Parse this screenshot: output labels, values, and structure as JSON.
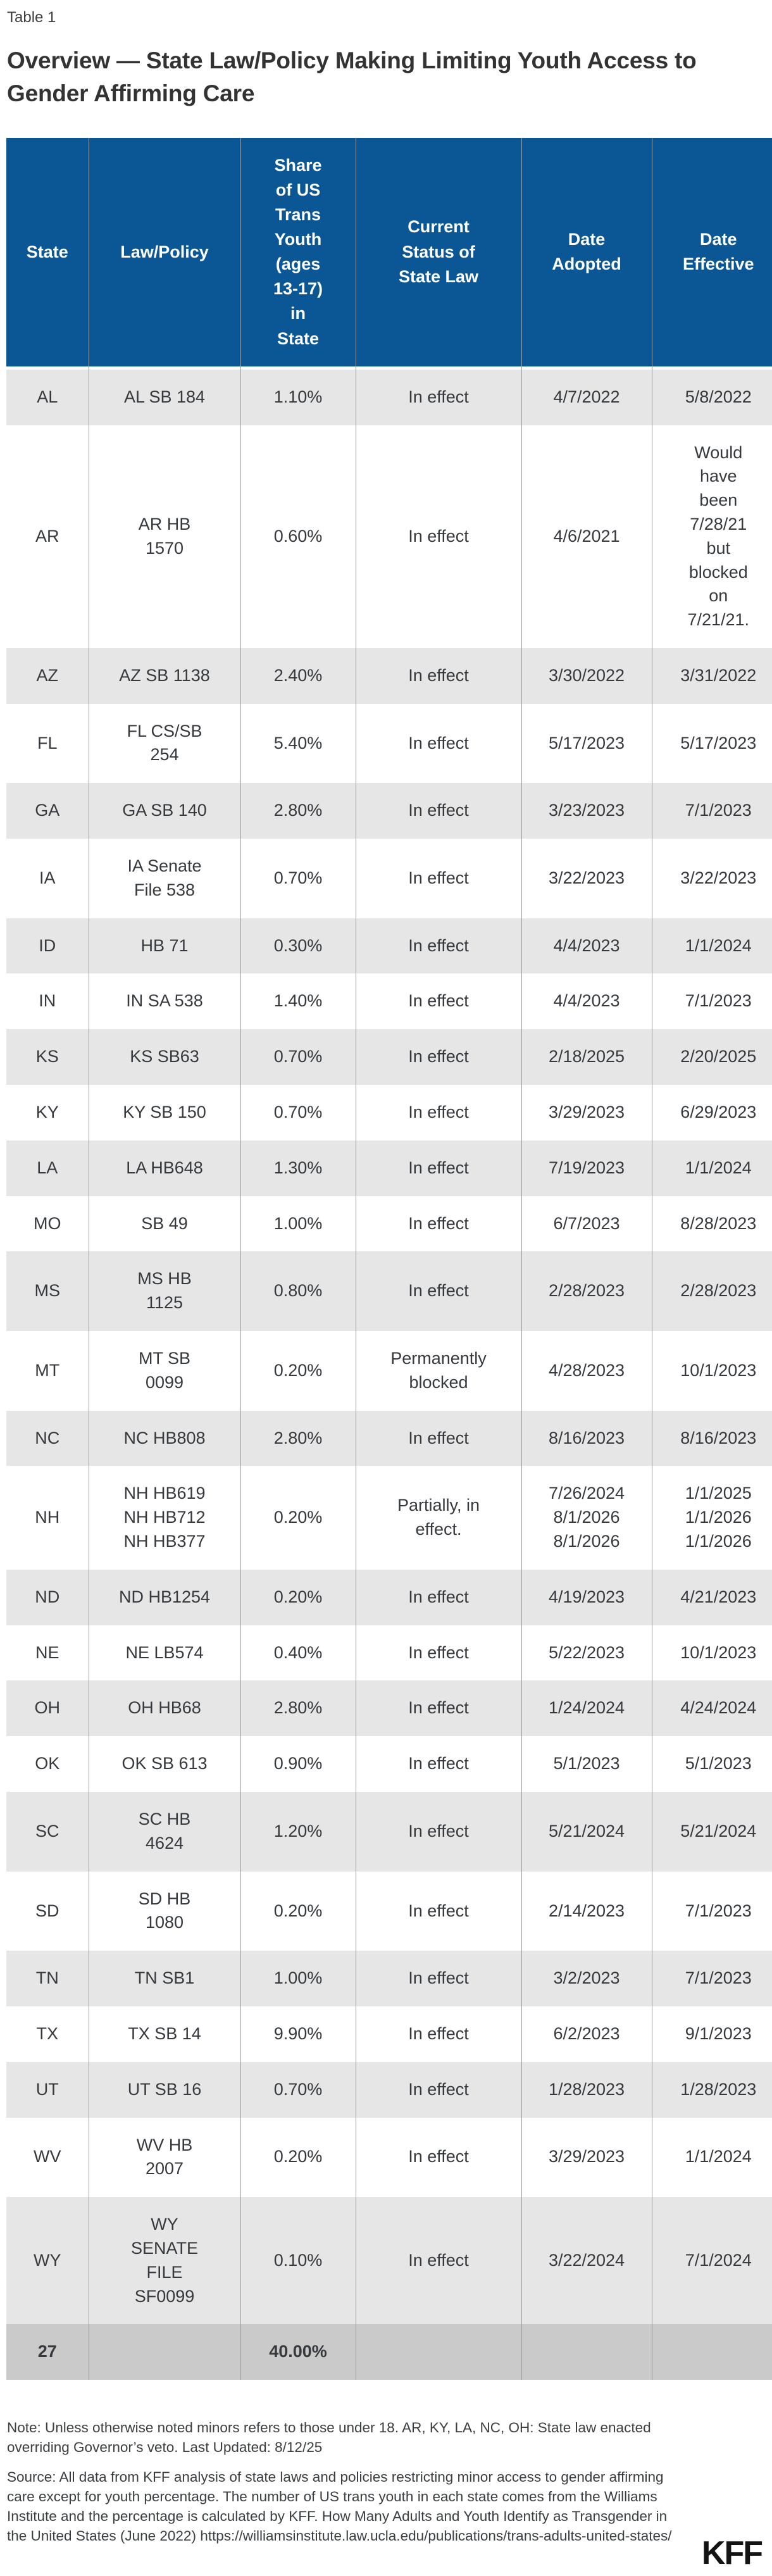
{
  "page": {
    "table_label": "Table 1",
    "title": "Overview — State Law/Policy Making Limiting Youth Access to Gender Affirming Care",
    "note": "Note: Unless otherwise noted minors refers to those under 18. AR, KY, LA, NC, OH: State law enacted overriding Governor’s veto. Last Updated: 8/12/25",
    "source": "Source: All data from KFF analysis of state laws and policies restricting minor access to gender affirming care except for youth percentage. The number of US trans youth in each state comes from the Williams Institute and the percentage is calculated by KFF. How Many Adults and Youth Identify as Transgender in the United States (June 2022) https://williamsinstitute.law.ucla.edu/publications/trans-adults-united-states/",
    "logo": "KFF"
  },
  "colors": {
    "headerBlue": "#0b5796",
    "stripe": "#e6e6e6",
    "totalRow": "#cacaca",
    "grid": "#9a9a9a",
    "bodyText": "#36393d"
  },
  "chart_data": {
    "type": "table",
    "title": "Overview — State Law/Policy Making Limiting Youth Access to Gender Affirming Care",
    "columns": [
      {
        "label": "State",
        "display": "State"
      },
      {
        "label": "Law/Policy",
        "display": "Law/Policy"
      },
      {
        "label": "Share of US Trans Youth (ages 13-17) in State",
        "display": "Share\nof US\nTrans\nYouth\n(ages\n13-17)\nin\nState"
      },
      {
        "label": "Current Status of State Law",
        "display": "Current\nStatus of\nState Law"
      },
      {
        "label": "Date Adopted",
        "display": "Date\nAdopted"
      },
      {
        "label": "Date Effective",
        "display": "Date\nEffective"
      }
    ],
    "rows": [
      {
        "state": "AL",
        "law": "AL SB 184",
        "share": "1.10%",
        "status": "In effect",
        "adopted": "4/7/2022",
        "effective": "5/8/2022"
      },
      {
        "state": "AR",
        "law": "AR HB\n1570",
        "share": "0.60%",
        "status": "In effect",
        "adopted": "4/6/2021",
        "effective": "Would\nhave\nbeen\n7/28/21\nbut\nblocked\non\n7/21/21."
      },
      {
        "state": "AZ",
        "law": "AZ SB 1138",
        "share": "2.40%",
        "status": "In effect",
        "adopted": "3/30/2022",
        "effective": "3/31/2022"
      },
      {
        "state": "FL",
        "law": "FL CS/SB\n254",
        "share": "5.40%",
        "status": "In effect",
        "adopted": "5/17/2023",
        "effective": "5/17/2023"
      },
      {
        "state": "GA",
        "law": "GA SB 140",
        "share": "2.80%",
        "status": "In effect",
        "adopted": "3/23/2023",
        "effective": "7/1/2023"
      },
      {
        "state": "IA",
        "law": "IA Senate\nFile 538",
        "share": "0.70%",
        "status": "In effect",
        "adopted": "3/22/2023",
        "effective": "3/22/2023"
      },
      {
        "state": "ID",
        "law": "HB 71",
        "share": "0.30%",
        "status": "In effect",
        "adopted": "4/4/2023",
        "effective": "1/1/2024"
      },
      {
        "state": "IN",
        "law": "IN SA 538",
        "share": "1.40%",
        "status": "In effect",
        "adopted": "4/4/2023",
        "effective": "7/1/2023"
      },
      {
        "state": "KS",
        "law": "KS SB63",
        "share": "0.70%",
        "status": "In effect",
        "adopted": "2/18/2025",
        "effective": "2/20/2025"
      },
      {
        "state": "KY",
        "law": "KY SB 150",
        "share": "0.70%",
        "status": "In effect",
        "adopted": "3/29/2023",
        "effective": "6/29/2023"
      },
      {
        "state": "LA",
        "law": "LA HB648",
        "share": "1.30%",
        "status": "In effect",
        "adopted": "7/19/2023",
        "effective": "1/1/2024"
      },
      {
        "state": "MO",
        "law": "SB 49",
        "share": "1.00%",
        "status": "In effect",
        "adopted": "6/7/2023",
        "effective": "8/28/2023"
      },
      {
        "state": "MS",
        "law": "MS HB\n1125",
        "share": "0.80%",
        "status": "In effect",
        "adopted": "2/28/2023",
        "effective": "2/28/2023"
      },
      {
        "state": "MT",
        "law": "MT SB\n0099",
        "share": "0.20%",
        "status": "Permanently\nblocked",
        "adopted": "4/28/2023",
        "effective": "10/1/2023"
      },
      {
        "state": "NC",
        "law": "NC HB808",
        "share": "2.80%",
        "status": "In effect",
        "adopted": "8/16/2023",
        "effective": "8/16/2023"
      },
      {
        "state": "NH",
        "law": "NH HB619\nNH HB712\nNH HB377",
        "share": "0.20%",
        "status": "Partially, in\neffect.",
        "adopted": "7/26/2024\n8/1/2026\n8/1/2026",
        "effective": "1/1/2025\n1/1/2026\n1/1/2026"
      },
      {
        "state": "ND",
        "law": "ND HB1254",
        "share": "0.20%",
        "status": "In effect",
        "adopted": "4/19/2023",
        "effective": "4/21/2023"
      },
      {
        "state": "NE",
        "law": "NE LB574",
        "share": "0.40%",
        "status": "In effect",
        "adopted": "5/22/2023",
        "effective": "10/1/2023"
      },
      {
        "state": "OH",
        "law": "OH HB68",
        "share": "2.80%",
        "status": "In effect",
        "adopted": "1/24/2024",
        "effective": "4/24/2024"
      },
      {
        "state": "OK",
        "law": "OK SB 613",
        "share": "0.90%",
        "status": "In effect",
        "adopted": "5/1/2023",
        "effective": "5/1/2023"
      },
      {
        "state": "SC",
        "law": "SC HB\n4624",
        "share": "1.20%",
        "status": "In effect",
        "adopted": "5/21/2024",
        "effective": "5/21/2024"
      },
      {
        "state": "SD",
        "law": "SD HB\n1080",
        "share": "0.20%",
        "status": "In effect",
        "adopted": "2/14/2023",
        "effective": "7/1/2023"
      },
      {
        "state": "TN",
        "law": "TN SB1",
        "share": "1.00%",
        "status": "In effect",
        "adopted": "3/2/2023",
        "effective": "7/1/2023"
      },
      {
        "state": "TX",
        "law": "TX SB 14",
        "share": "9.90%",
        "status": "In effect",
        "adopted": "6/2/2023",
        "effective": "9/1/2023"
      },
      {
        "state": "UT",
        "law": "UT SB 16",
        "share": "0.70%",
        "status": "In effect",
        "adopted": "1/28/2023",
        "effective": "1/28/2023"
      },
      {
        "state": "WV",
        "law": "WV HB\n2007",
        "share": "0.20%",
        "status": "In effect",
        "adopted": "3/29/2023",
        "effective": "1/1/2024"
      },
      {
        "state": "WY",
        "law": "WY\nSENATE\nFILE\nSF0099",
        "share": "0.10%",
        "status": "In effect",
        "adopted": "3/22/2024",
        "effective": "7/1/2024"
      }
    ],
    "total": {
      "state": "27",
      "law": "",
      "share": "40.00%",
      "status": "",
      "adopted": "",
      "effective": ""
    }
  }
}
